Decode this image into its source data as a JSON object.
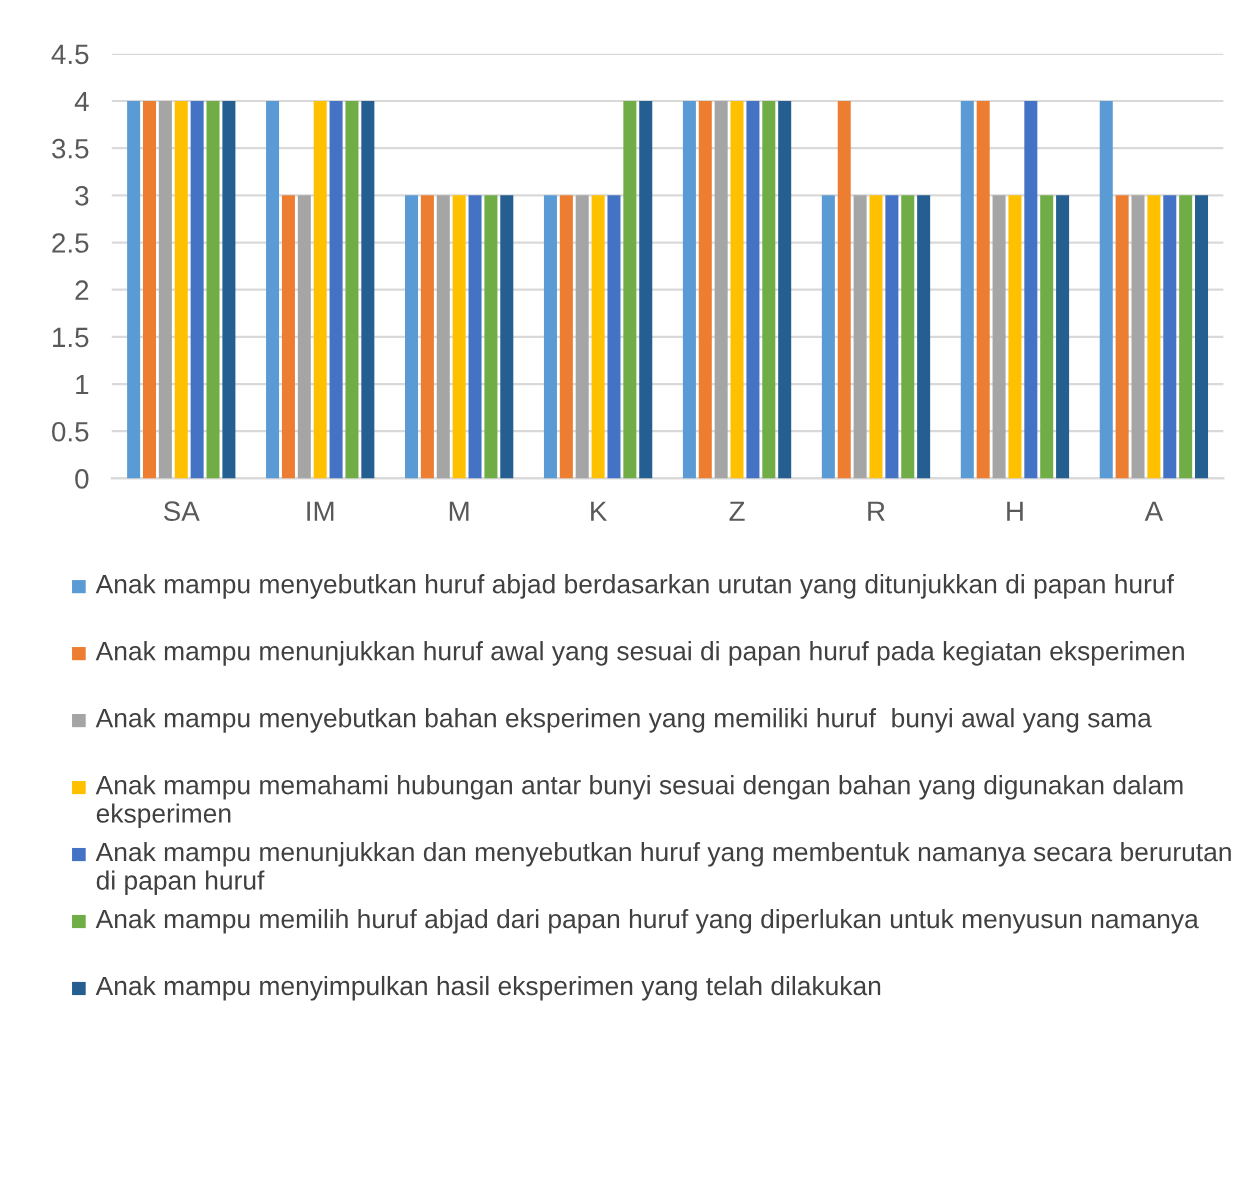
{
  "chart_data": {
    "type": "bar",
    "categories": [
      "SA",
      "IM",
      "M",
      "K",
      "Z",
      "R",
      "H",
      "A"
    ],
    "series": [
      {
        "name": "Anak mampu menyebutkan huruf abjad berdasarkan urutan yang ditunjukkan di papan huruf",
        "color": "#5b9bd5",
        "values": [
          4,
          4,
          3,
          3,
          4,
          3,
          4,
          4
        ]
      },
      {
        "name": "Anak mampu menunjukkan huruf awal yang sesuai di papan huruf pada kegiatan eksperimen",
        "color": "#ed7d31",
        "values": [
          4,
          3,
          3,
          3,
          4,
          4,
          4,
          3
        ]
      },
      {
        "name": "Anak mampu menyebutkan bahan eksperimen yang memiliki huruf  bunyi awal yang sama",
        "color": "#a5a5a5",
        "values": [
          4,
          3,
          3,
          3,
          4,
          3,
          3,
          3
        ]
      },
      {
        "name": "Anak mampu memahami hubungan antar bunyi sesuai dengan bahan yang digunakan dalam eksperimen",
        "color": "#ffc000",
        "values": [
          4,
          4,
          3,
          3,
          4,
          3,
          3,
          3
        ]
      },
      {
        "name": "Anak mampu menunjukkan dan menyebutkan huruf yang membentuk namanya secara berurutan di papan huruf",
        "color": "#4472c4",
        "values": [
          4,
          4,
          3,
          3,
          4,
          3,
          4,
          3
        ]
      },
      {
        "name": "Anak mampu memilih huruf abjad dari papan huruf yang diperlukan untuk menyusun namanya",
        "color": "#70ad47",
        "values": [
          4,
          4,
          3,
          4,
          4,
          3,
          3,
          3
        ]
      },
      {
        "name": "Anak mampu menyimpulkan hasil eksperimen yang telah dilakukan",
        "color": "#255e91",
        "values": [
          4,
          4,
          3,
          4,
          4,
          3,
          3,
          3
        ]
      }
    ],
    "ylim": [
      0,
      4.5
    ],
    "yticks": [
      0,
      0.5,
      1,
      1.5,
      2,
      2.5,
      3,
      3.5,
      4,
      4.5
    ],
    "grid": "y",
    "legend": "bottom"
  }
}
